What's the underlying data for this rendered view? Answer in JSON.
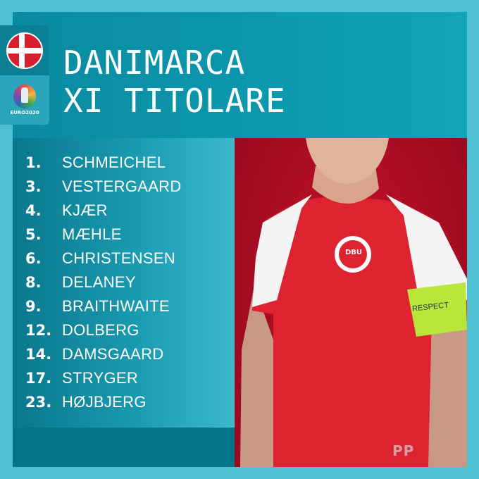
{
  "header": {
    "title_line1": "DANIMARCA",
    "title_line2": "XI TITOLARE",
    "euro_logo_text": "EURO2020",
    "flag": "denmark-flag-icon"
  },
  "lineup": [
    {
      "number": "1.",
      "name": "SCHMEICHEL"
    },
    {
      "number": "3.",
      "name": "VESTERGAARD"
    },
    {
      "number": "4.",
      "name": "KJÆR"
    },
    {
      "number": "5.",
      "name": "MÆHLE"
    },
    {
      "number": "6.",
      "name": "CHRISTENSEN"
    },
    {
      "number": "8.",
      "name": "DELANEY"
    },
    {
      "number": "9.",
      "name": "BRAITHWAITE"
    },
    {
      "number": "12.",
      "name": "DOLBERG"
    },
    {
      "number": "14.",
      "name": "DAMSGAARD"
    },
    {
      "number": "17.",
      "name": "STRYGER"
    },
    {
      "number": "23.",
      "name": "HØJBJERG"
    }
  ],
  "photo": {
    "armband_text": "RESPECT",
    "crest_text": "DBU"
  },
  "watermark": "PP",
  "colors": {
    "background": "#4ec0d2",
    "panel": "#0a8aa0",
    "jersey_red": "#d7202e",
    "armband": "#b8e63a"
  }
}
